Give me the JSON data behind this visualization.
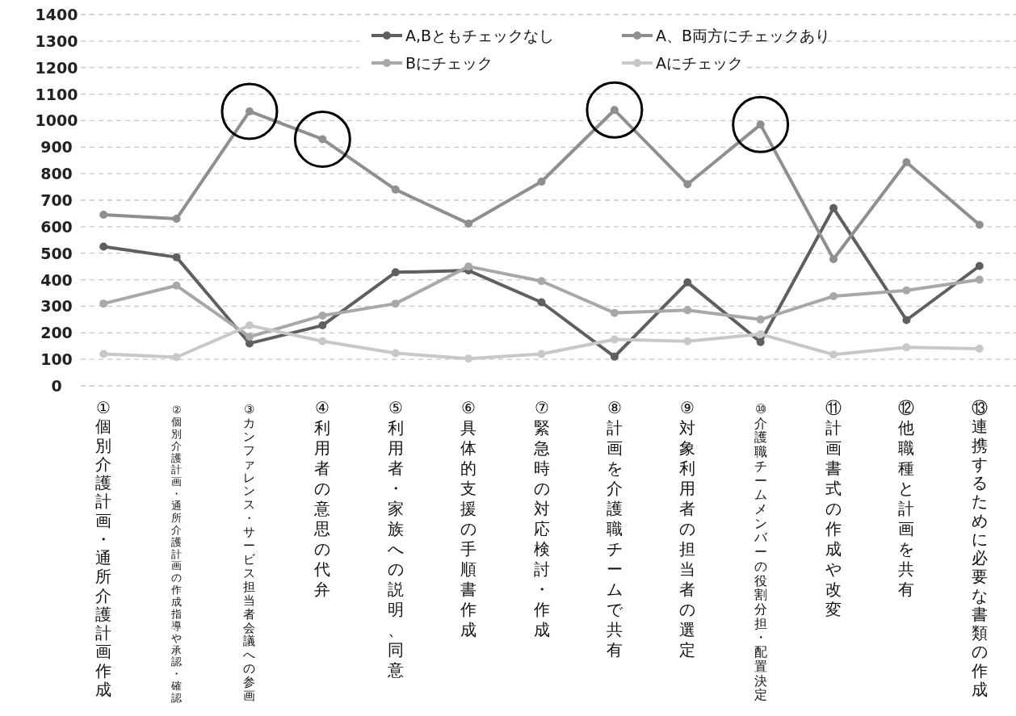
{
  "chart_data": {
    "type": "line",
    "categories": [
      "①個別介護計画・通所介護計画作成",
      "②個別介護計画・通所介護計画の作成指導や承認・確認",
      "③カンファレンス・サービス担当者会議への参画",
      "④利用者の意思の代弁",
      "⑤利用者・家族への説明、同意",
      "⑥具体的支援の手順書作成",
      "⑦緊急時の対応検討・作成",
      "⑧計画を介護職チームで共有",
      "⑨対象利用者の担当者の選定",
      "⑩介護職チームメンバーの役割分担・配置決定",
      "⑪計画書式の作成や改変",
      "⑫他職種と計画を共有",
      "⑬連携するために必要な書類の作成"
    ],
    "series": [
      {
        "name": "A,Bともチェックなし",
        "color": "#5f5f5f",
        "values": [
          525,
          485,
          160,
          228,
          428,
          435,
          315,
          110,
          390,
          165,
          670,
          248,
          452
        ]
      },
      {
        "name": "A、B両方にチェックあり",
        "color": "#8f8f8f",
        "values": [
          645,
          630,
          1035,
          930,
          740,
          612,
          770,
          1040,
          760,
          985,
          478,
          843,
          607
        ]
      },
      {
        "name": "Bにチェック",
        "color": "#a8a8a8",
        "values": [
          310,
          378,
          185,
          265,
          310,
          450,
          395,
          275,
          285,
          250,
          338,
          360,
          400
        ]
      },
      {
        "name": "Aにチェック",
        "color": "#c8c8c8",
        "values": [
          120,
          108,
          228,
          168,
          123,
          103,
          120,
          175,
          168,
          195,
          118,
          145,
          140
        ]
      }
    ],
    "ylim": [
      0,
      1400
    ],
    "yticks": [
      0,
      100,
      200,
      300,
      400,
      500,
      600,
      700,
      800,
      900,
      1000,
      1100,
      1200,
      1300,
      1400
    ],
    "grid": "y",
    "legend": "top",
    "marker": "circle",
    "line_style": "solid"
  }
}
